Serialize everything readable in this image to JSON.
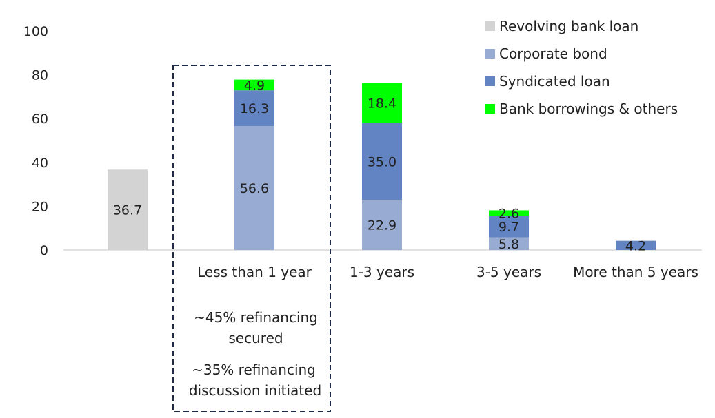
{
  "chart_data": {
    "type": "bar",
    "stacked": true,
    "categories": [
      "",
      "Less than 1 year",
      "1-3 years",
      "3-5 years",
      "More than 5 years"
    ],
    "series": [
      {
        "name": "Revolving bank loan",
        "color": "#d3d3d3",
        "values": [
          36.7,
          null,
          null,
          null,
          null
        ]
      },
      {
        "name": "Corporate bond",
        "color": "#98acd3",
        "values": [
          null,
          56.6,
          22.9,
          5.8,
          null
        ]
      },
      {
        "name": "Syndicated loan",
        "color": "#6384c3",
        "values": [
          null,
          16.3,
          35.0,
          9.7,
          4.2
        ]
      },
      {
        "name": "Bank borrowings & others",
        "color": "#00ff00",
        "values": [
          null,
          4.9,
          18.4,
          2.6,
          null
        ]
      }
    ],
    "data_labels": [
      [
        "36.7",
        null,
        null,
        null,
        null
      ],
      [
        null,
        "56.6",
        "22.9",
        "5.8",
        null
      ],
      [
        null,
        "16.3",
        "35.0",
        "9.7",
        "4.2"
      ],
      [
        null,
        "4.9",
        "18.4",
        "2.6",
        null
      ]
    ],
    "ylim": [
      0,
      100
    ],
    "yticks": [
      "0",
      "20",
      "40",
      "60",
      "80",
      "100"
    ],
    "title": "",
    "xlabel": "",
    "ylabel": "",
    "legend_position": "top-right",
    "grid": false
  },
  "annotation": {
    "lines": [
      "~45% refinancing",
      "secured",
      "~35% refinancing",
      "discussion initiated"
    ],
    "border_color": "#1f2a44"
  }
}
